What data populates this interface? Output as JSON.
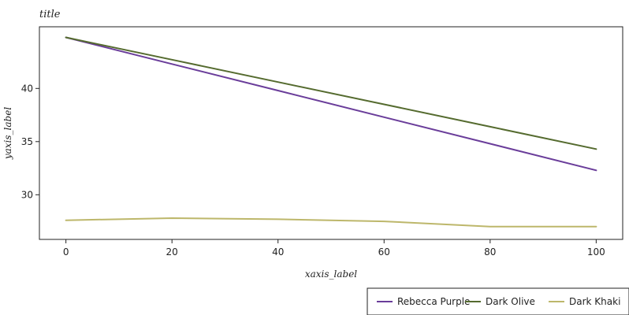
{
  "chart_data": {
    "type": "line",
    "title": "title",
    "xlabel": "xaxis_label",
    "ylabel": "yaxis_label",
    "x": [
      0,
      20,
      40,
      60,
      80,
      100
    ],
    "xlim": [
      -5,
      105
    ],
    "ylim": [
      25.8,
      45.8
    ],
    "x_ticks": [
      0,
      20,
      40,
      60,
      80,
      100
    ],
    "y_ticks": [
      30,
      35,
      40
    ],
    "grid": false,
    "legend_position": "bottom-right",
    "series": [
      {
        "name": "Rebecca Purple",
        "color": "#6a3d9a",
        "values": [
          44.8,
          42.3,
          39.8,
          37.3,
          34.8,
          32.3
        ]
      },
      {
        "name": "Dark Olive",
        "color": "#556b2f",
        "values": [
          44.8,
          42.7,
          40.6,
          38.5,
          36.4,
          34.3
        ]
      },
      {
        "name": "Dark Khaki",
        "color": "#bdb76b",
        "values": [
          27.6,
          27.8,
          27.7,
          27.5,
          27.0,
          27.0
        ]
      }
    ],
    "legend_order": [
      "Rebecca Purple",
      "Dark Olive",
      "Dark Khaki"
    ]
  }
}
